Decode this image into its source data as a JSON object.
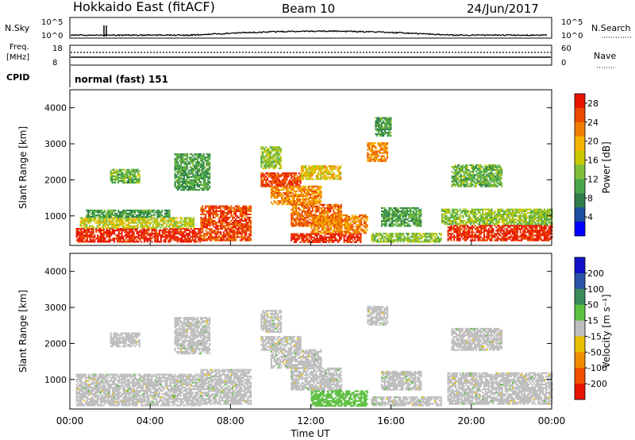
{
  "header": {
    "station": "Hokkaido East (fitACF)",
    "beam": "Beam 10",
    "date": "24/Jun/2017"
  },
  "nsky_panel": {
    "label": "N.Sky",
    "tick_top": "10^5",
    "tick_bottom": "10^0",
    "right_label": "N.Search",
    "right_tick_top": "10^5",
    "right_tick_bottom": "10^0"
  },
  "freq_panel": {
    "label_line1": "Freq.",
    "label_line2": "[MHz]",
    "tick_top": "18",
    "tick_bottom": "8",
    "right_label": "Nave",
    "right_tick_top": "60",
    "right_tick_bottom": "0"
  },
  "cpid_panel": {
    "label": "CPID",
    "text": "normal (fast) 151"
  },
  "colors": {
    "plot_frame": "#000000",
    "power_high": "#e81400",
    "velocity_ground": "#bebebe"
  },
  "chart_data": [
    {
      "type": "heatmap",
      "name": "power",
      "ylabel": "Slant Range [km]",
      "xlabel": "",
      "xlim": [
        0,
        24
      ],
      "ylim": [
        180,
        4500
      ],
      "y_ticks": [
        1000,
        2000,
        3000,
        4000
      ],
      "y_tick_labels": [
        "1000",
        "2000",
        "3000",
        "4000"
      ],
      "colorbar": {
        "label": "Power [dB]",
        "range": [
          0,
          30
        ],
        "tick_values": [
          4,
          8,
          12,
          16,
          20,
          24,
          28
        ],
        "tick_labels": [
          "4",
          "8",
          "12",
          "16",
          "20",
          "24",
          "28"
        ],
        "colors": [
          "#0000ff",
          "#1c4ea0",
          "#2e7d4a",
          "#4aa64a",
          "#7fbf3a",
          "#c8c800",
          "#f5b400",
          "#f07f00",
          "#eb4a00",
          "#e81400"
        ]
      },
      "regions": [
        {
          "t0": 0.3,
          "t1": 6.5,
          "r0": 260,
          "r1": 650,
          "v": 28
        },
        {
          "t0": 0.5,
          "t1": 6.2,
          "r0": 650,
          "r1": 950,
          "v": 16
        },
        {
          "t0": 0.8,
          "t1": 5.0,
          "r0": 950,
          "r1": 1150,
          "v": 10
        },
        {
          "t0": 6.5,
          "t1": 9.0,
          "r0": 300,
          "r1": 1250,
          "v": 26
        },
        {
          "t0": 5.2,
          "t1": 7.0,
          "r0": 1700,
          "r1": 2700,
          "v": 10
        },
        {
          "t0": 9.5,
          "t1": 11.5,
          "r0": 1800,
          "r1": 2200,
          "v": 26
        },
        {
          "t0": 10.0,
          "t1": 12.5,
          "r0": 1300,
          "r1": 1800,
          "v": 22
        },
        {
          "t0": 11.0,
          "t1": 13.5,
          "r0": 700,
          "r1": 1300,
          "v": 24
        },
        {
          "t0": 12.0,
          "t1": 14.8,
          "r0": 500,
          "r1": 1000,
          "v": 22
        },
        {
          "t0": 11.0,
          "t1": 14.5,
          "r0": 250,
          "r1": 500,
          "v": 28
        },
        {
          "t0": 11.5,
          "t1": 13.5,
          "r0": 2000,
          "r1": 2400,
          "v": 18
        },
        {
          "t0": 14.8,
          "t1": 15.8,
          "r0": 2500,
          "r1": 3000,
          "v": 22
        },
        {
          "t0": 15.2,
          "t1": 16.0,
          "r0": 3200,
          "r1": 3700,
          "v": 10
        },
        {
          "t0": 9.5,
          "t1": 10.5,
          "r0": 2300,
          "r1": 2900,
          "v": 14
        },
        {
          "t0": 15.5,
          "t1": 17.5,
          "r0": 700,
          "r1": 1200,
          "v": 10
        },
        {
          "t0": 15.0,
          "t1": 18.5,
          "r0": 260,
          "r1": 500,
          "v": 14
        },
        {
          "t0": 18.8,
          "t1": 24.0,
          "r0": 300,
          "r1": 750,
          "v": 28
        },
        {
          "t0": 18.5,
          "t1": 24.0,
          "r0": 750,
          "r1": 1200,
          "v": 14
        },
        {
          "t0": 19.0,
          "t1": 21.5,
          "r0": 1800,
          "r1": 2400,
          "v": 12
        },
        {
          "t0": 2.0,
          "t1": 3.5,
          "r0": 1900,
          "r1": 2300,
          "v": 12
        }
      ]
    },
    {
      "type": "heatmap",
      "name": "velocity",
      "ylabel": "Slant Range [km]",
      "xlabel": "Time UT",
      "xlim": [
        0,
        24
      ],
      "ylim": [
        180,
        4500
      ],
      "x_ticks": [
        0,
        4,
        8,
        12,
        16,
        20,
        24
      ],
      "x_tick_labels": [
        "00:00",
        "04:00",
        "08:00",
        "12:00",
        "16:00",
        "20:00",
        "00:00"
      ],
      "y_ticks": [
        1000,
        2000,
        3000,
        4000
      ],
      "y_tick_labels": [
        "1000",
        "2000",
        "3000",
        "4000"
      ],
      "colorbar": {
        "label": "Velocity [m s⁻¹]",
        "range": [
          -250,
          250
        ],
        "tick_values": [
          200,
          100,
          50,
          15,
          -15,
          -50,
          -100,
          -200
        ],
        "tick_labels": [
          "200",
          "100",
          "50",
          "15",
          "-15",
          "-50",
          "-100",
          "-200"
        ],
        "colors": [
          "#1010c8",
          "#2a52a6",
          "#3a8a5a",
          "#5cc040",
          "#bebebe",
          "#e8c000",
          "#f08c00",
          "#f05000",
          "#e81400"
        ]
      },
      "regions": [
        {
          "t0": 0.3,
          "t1": 6.5,
          "r0": 260,
          "r1": 1150,
          "v": 0
        },
        {
          "t0": 6.5,
          "t1": 9.0,
          "r0": 300,
          "r1": 1250,
          "v": 0
        },
        {
          "t0": 5.2,
          "t1": 7.0,
          "r0": 1700,
          "r1": 2700,
          "v": 0
        },
        {
          "t0": 9.5,
          "t1": 11.5,
          "r0": 1800,
          "r1": 2200,
          "v": 0
        },
        {
          "t0": 10.0,
          "t1": 12.5,
          "r0": 1300,
          "r1": 1800,
          "v": 0
        },
        {
          "t0": 11.0,
          "t1": 13.5,
          "r0": 700,
          "r1": 1300,
          "v": 0
        },
        {
          "t0": 12.0,
          "t1": 14.8,
          "r0": 250,
          "r1": 700,
          "v": 30
        },
        {
          "t0": 14.8,
          "t1": 15.8,
          "r0": 2500,
          "r1": 3000,
          "v": 0
        },
        {
          "t0": 15.5,
          "t1": 17.5,
          "r0": 700,
          "r1": 1200,
          "v": 0
        },
        {
          "t0": 15.0,
          "t1": 18.5,
          "r0": 260,
          "r1": 500,
          "v": 0
        },
        {
          "t0": 18.8,
          "t1": 24.0,
          "r0": 300,
          "r1": 1200,
          "v": 0
        },
        {
          "t0": 19.0,
          "t1": 21.5,
          "r0": 1800,
          "r1": 2400,
          "v": 0
        },
        {
          "t0": 2.0,
          "t1": 3.5,
          "r0": 1900,
          "r1": 2300,
          "v": 0
        },
        {
          "t0": 9.5,
          "t1": 10.5,
          "r0": 2300,
          "r1": 2900,
          "v": 0
        }
      ]
    }
  ]
}
